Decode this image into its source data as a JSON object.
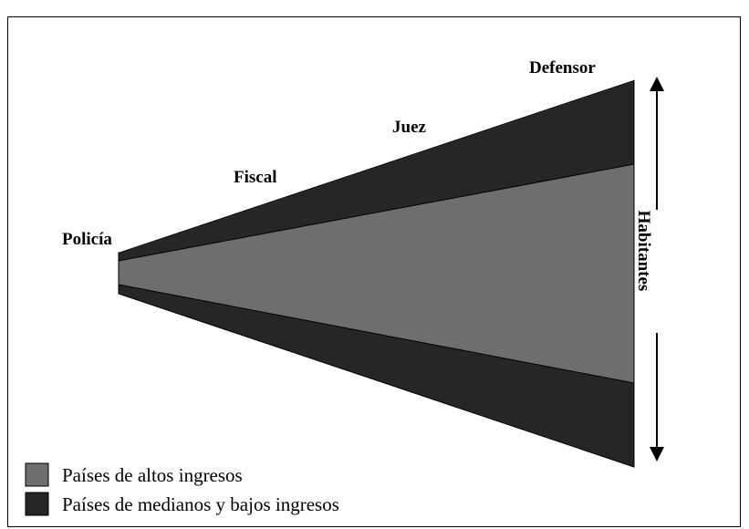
{
  "stages": [
    "Policía",
    "Fiscal",
    "Juez",
    "Defensor"
  ],
  "axis_label": "Habitantes",
  "legend": [
    {
      "name": "Países de altos  ingresos",
      "color": "#6e6e6e"
    },
    {
      "name": "Países de medianos  y bajos  ingresos",
      "color": "#262626"
    }
  ]
}
